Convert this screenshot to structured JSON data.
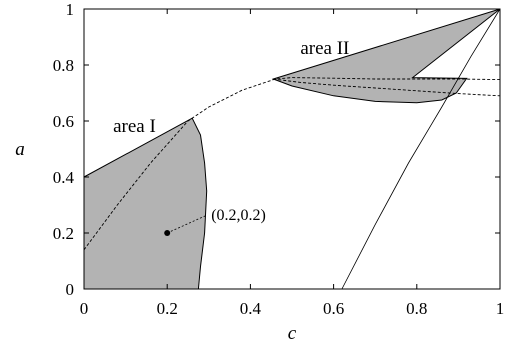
{
  "chart_data": {
    "type": "area",
    "xlabel": "c",
    "ylabel": "a",
    "xlim": [
      0,
      1
    ],
    "ylim": [
      0,
      1
    ],
    "x_ticks": [
      "0",
      "0.2",
      "0.4",
      "0.6",
      "0.8",
      "1"
    ],
    "y_ticks": [
      "0",
      "0.2",
      "0.4",
      "0.6",
      "0.8",
      "1"
    ],
    "grid": false,
    "fill_color": "#b3b3b3",
    "annotations": [
      {
        "text": "area I",
        "x": 0.07,
        "y": 0.56
      },
      {
        "text": "area II",
        "x": 0.52,
        "y": 0.84
      }
    ],
    "point": {
      "x": 0.2,
      "y": 0.2,
      "label": "(0.2,0.2)"
    },
    "regions": [
      {
        "name": "area I",
        "boundary": [
          [
            0,
            0.4
          ],
          [
            0.26,
            0.61
          ],
          [
            0.28,
            0.55
          ],
          [
            0.29,
            0.45
          ],
          [
            0.295,
            0.35
          ],
          [
            0.29,
            0.2
          ],
          [
            0.28,
            0.08
          ],
          [
            0.275,
            0
          ],
          [
            0,
            0
          ]
        ]
      },
      {
        "name": "area II",
        "boundary": [
          [
            0.455,
            0.75
          ],
          [
            1.0,
            1.0
          ],
          [
            0.79,
            0.755
          ],
          [
            0.92,
            0.752
          ],
          [
            0.895,
            0.7
          ],
          [
            0.86,
            0.675
          ],
          [
            0.8,
            0.665
          ],
          [
            0.7,
            0.67
          ],
          [
            0.6,
            0.69
          ],
          [
            0.5,
            0.725
          ],
          [
            0.455,
            0.75
          ]
        ]
      }
    ],
    "series": [
      {
        "style": "dashed",
        "points": [
          [
            0,
            0.14
          ],
          [
            0.08,
            0.3
          ],
          [
            0.16,
            0.45
          ],
          [
            0.25,
            0.6
          ],
          [
            0.3,
            0.65
          ],
          [
            0.38,
            0.71
          ],
          [
            0.46,
            0.75
          ],
          [
            0.5,
            0.755
          ],
          [
            0.6,
            0.753
          ],
          [
            0.7,
            0.75
          ],
          [
            0.8,
            0.75
          ],
          [
            0.9,
            0.75
          ],
          [
            1.0,
            0.748
          ]
        ]
      },
      {
        "style": "dashed",
        "points": [
          [
            0.455,
            0.75
          ],
          [
            0.52,
            0.738
          ],
          [
            0.6,
            0.728
          ],
          [
            0.7,
            0.718
          ],
          [
            0.8,
            0.708
          ],
          [
            0.9,
            0.698
          ],
          [
            1.0,
            0.69
          ]
        ]
      },
      {
        "style": "thin",
        "points": [
          [
            0.62,
            0
          ],
          [
            0.7,
            0.23
          ],
          [
            0.78,
            0.45
          ],
          [
            0.86,
            0.65
          ],
          [
            0.93,
            0.83
          ],
          [
            1.0,
            1.0
          ]
        ]
      }
    ]
  }
}
